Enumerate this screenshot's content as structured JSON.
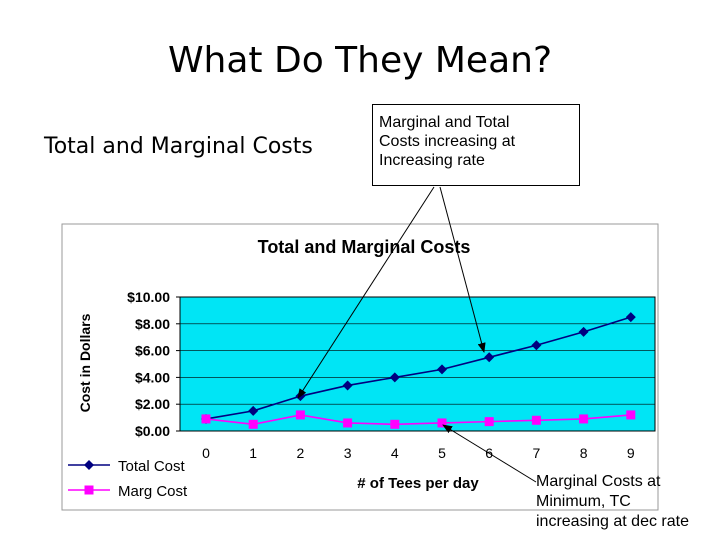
{
  "slide": {
    "title": "What Do They Mean?",
    "subtitle": "Total and Marginal Costs"
  },
  "callouts": {
    "top_box": [
      "Marginal and Total",
      "Costs increasing at",
      "Increasing rate"
    ],
    "bottom_note": [
      "Marginal Costs at",
      "Minimum, TC",
      "increasing at dec rate"
    ]
  },
  "colors": {
    "plot_background": "#00e5f5",
    "chart_background": "#ffffff",
    "total_cost": "#000080",
    "marg_cost": "#ff00ff"
  },
  "chart_data": {
    "type": "line",
    "title": "Total and Marginal Costs",
    "xlabel": "# of Tees per day",
    "ylabel": "Cost in Dollars",
    "x": [
      0,
      1,
      2,
      3,
      4,
      5,
      6,
      7,
      8,
      9
    ],
    "x_tick_labels": [
      "0",
      "1",
      "2",
      "3",
      "4",
      "5",
      "6",
      "7",
      "8",
      "9"
    ],
    "y_tick_labels": [
      "$0.00",
      "$2.00",
      "$4.00",
      "$6.00",
      "$8.00",
      "$10.00"
    ],
    "y_ticks": [
      0,
      2,
      4,
      6,
      8,
      10
    ],
    "ylim": [
      0,
      10
    ],
    "grid": true,
    "legend_position": "bottom-left",
    "series": [
      {
        "name": "Total Cost",
        "marker": "diamond",
        "values": [
          0.9,
          1.5,
          2.6,
          3.4,
          4.0,
          4.6,
          5.5,
          6.4,
          7.4,
          8.5
        ]
      },
      {
        "name": "Marg Cost",
        "marker": "square",
        "values": [
          0.9,
          0.5,
          1.2,
          0.6,
          0.5,
          0.6,
          0.7,
          0.8,
          0.9,
          1.2
        ]
      }
    ]
  }
}
